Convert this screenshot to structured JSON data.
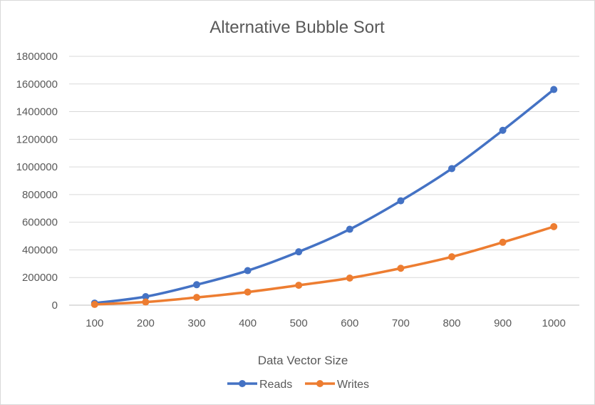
{
  "chart_data": {
    "type": "line",
    "title": "Alternative Bubble Sort",
    "xlabel": "Data Vector Size",
    "ylabel": "",
    "categories": [
      "100",
      "200",
      "300",
      "400",
      "500",
      "600",
      "700",
      "800",
      "900",
      "1000"
    ],
    "ylim": [
      0,
      1800000
    ],
    "yticks": [
      "0",
      "200000",
      "400000",
      "600000",
      "800000",
      "1000000",
      "1200000",
      "1400000",
      "1600000",
      "1800000"
    ],
    "grid": true,
    "legend_position": "bottom",
    "series": [
      {
        "name": "Reads",
        "color": "#4472C4",
        "values": [
          15000,
          62000,
          148000,
          250000,
          386000,
          549000,
          755000,
          988000,
          1265000,
          1560000
        ]
      },
      {
        "name": "Writes",
        "color": "#ED7D31",
        "values": [
          5500,
          23000,
          56000,
          95000,
          144000,
          196000,
          267000,
          350000,
          455000,
          568000
        ]
      }
    ]
  }
}
